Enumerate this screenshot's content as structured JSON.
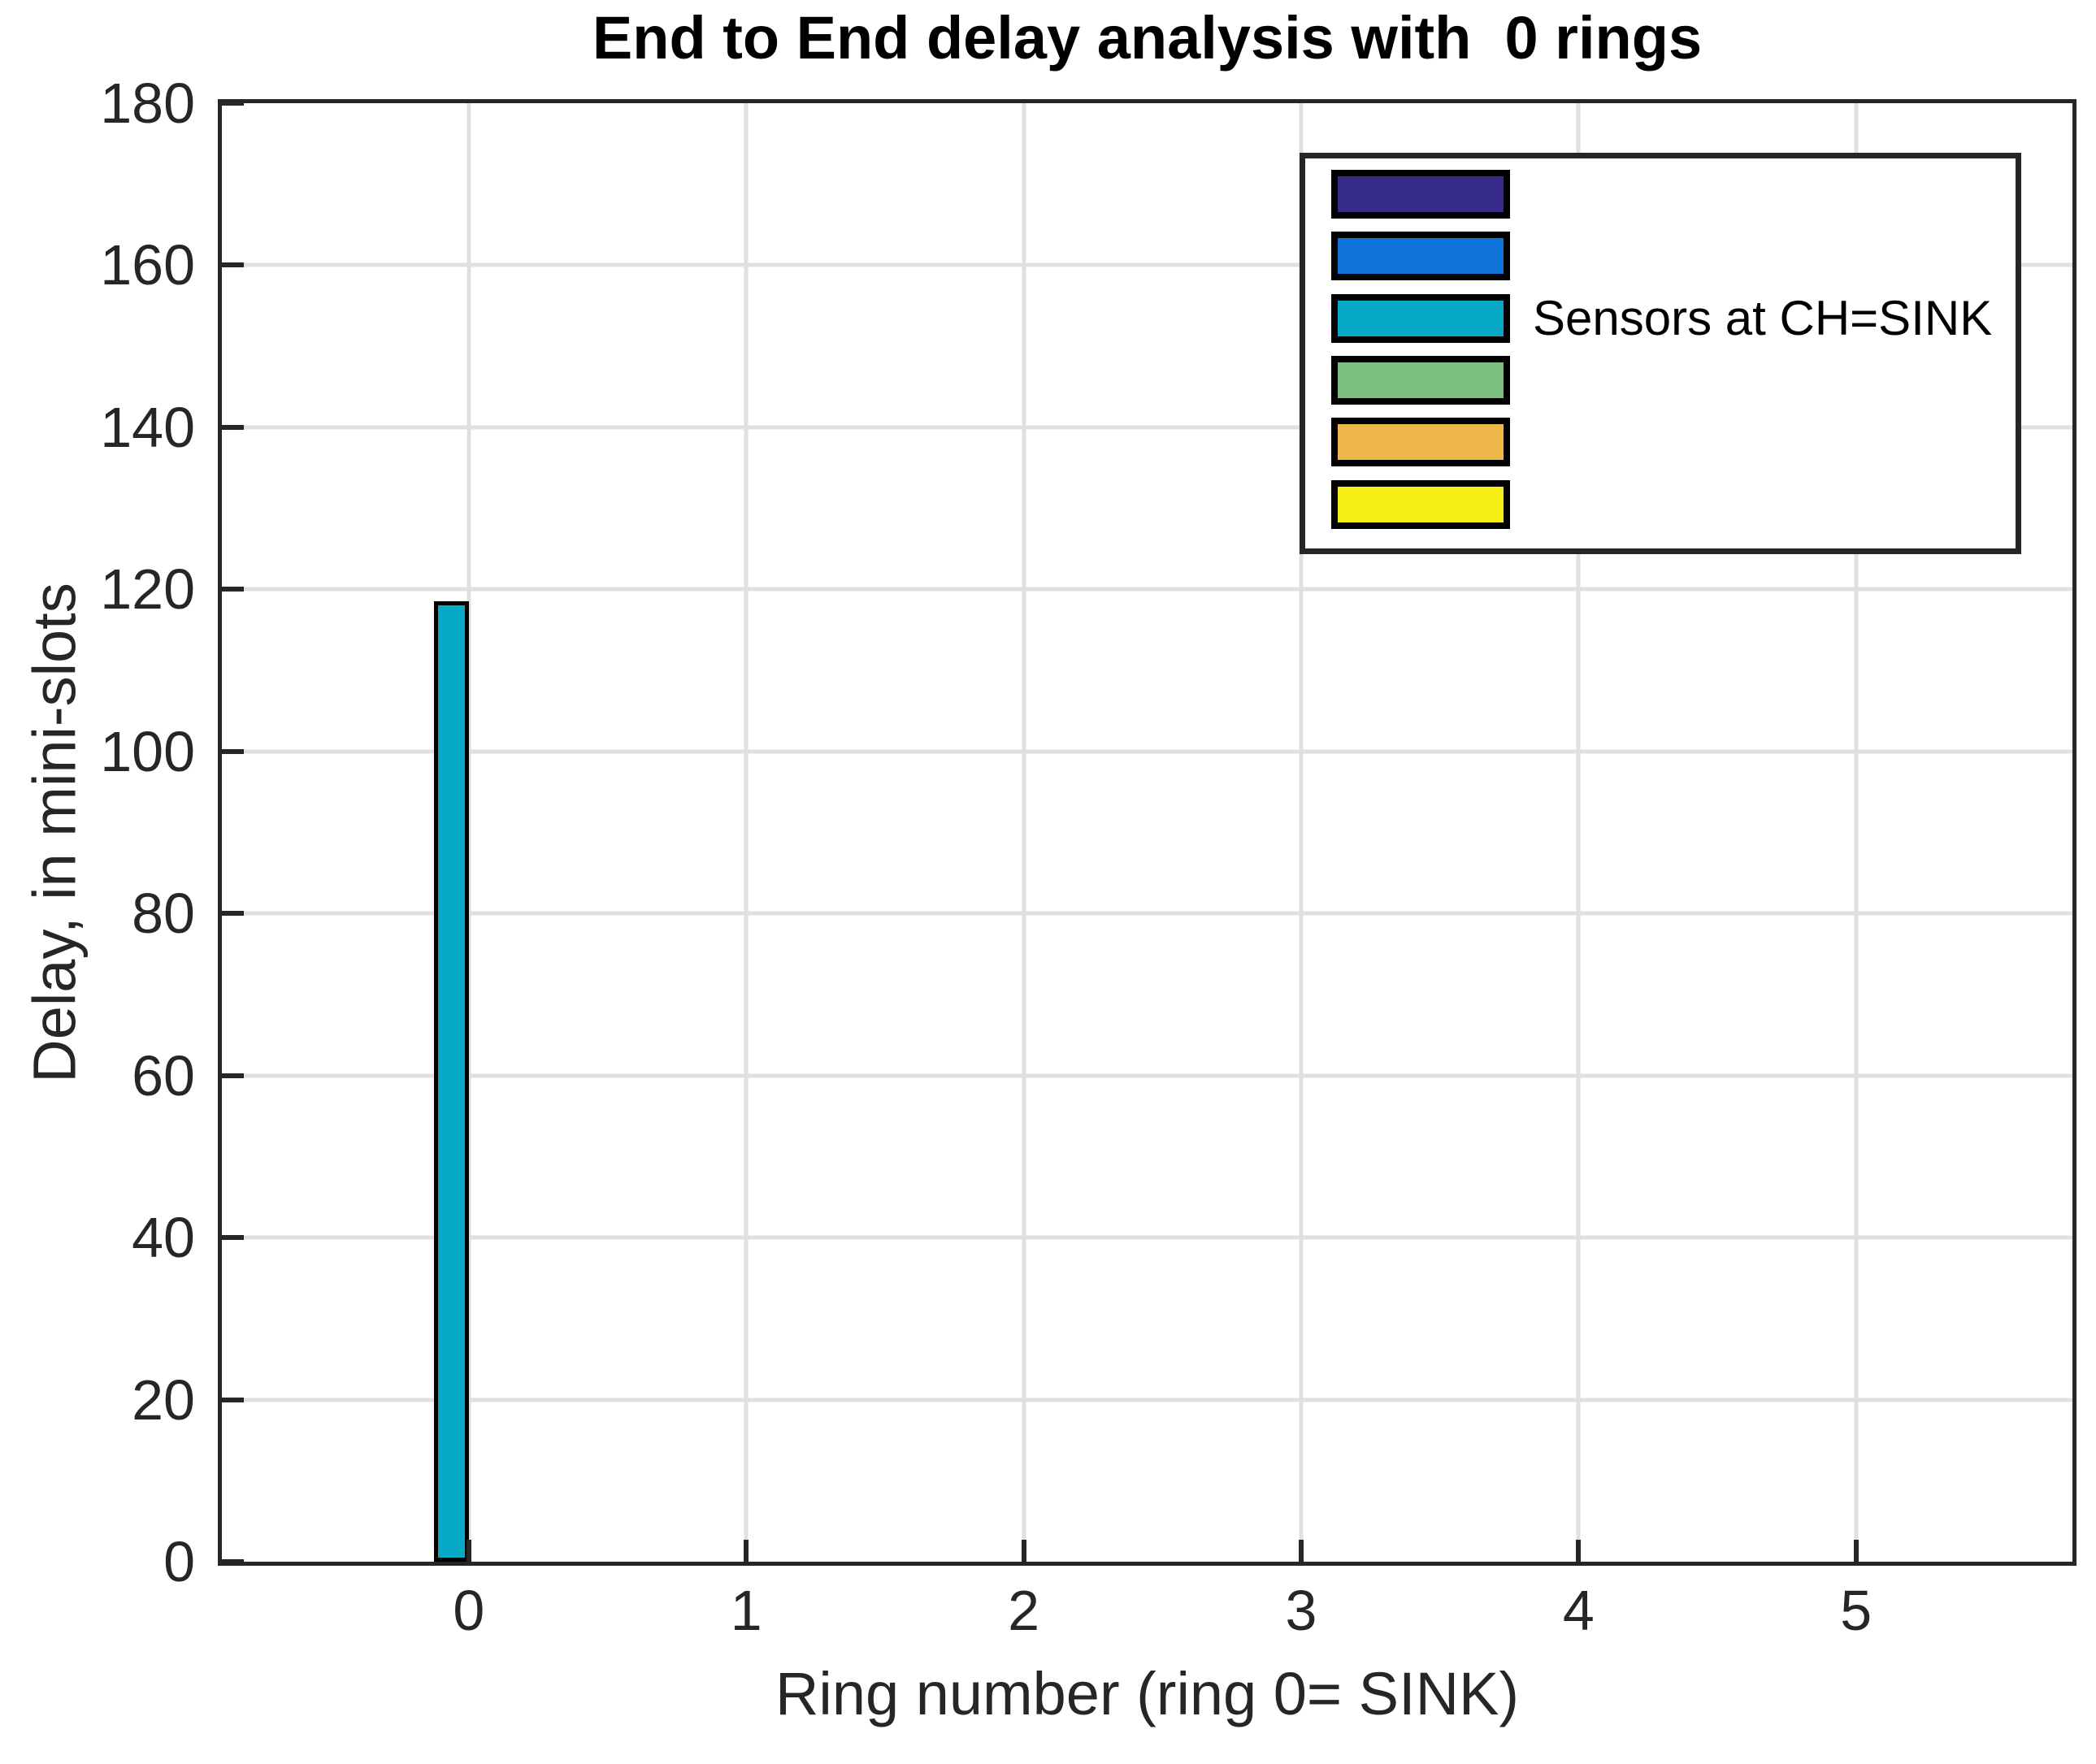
{
  "figure": {
    "background_color": "#ffffff",
    "axis_color": "#262626",
    "grid_color": "#e0e0e0"
  },
  "chart_data": {
    "type": "bar",
    "title": "End to End delay analysis with  0 rings",
    "xlabel": "Ring number (ring 0= SINK)",
    "ylabel": "Delay, in mini-slots",
    "xlim": [
      -0.89,
      5.78
    ],
    "ylim": [
      0,
      180
    ],
    "xticks": [
      0,
      1,
      2,
      3,
      4,
      5
    ],
    "yticks": [
      0,
      20,
      40,
      60,
      80,
      100,
      120,
      140,
      160,
      180
    ],
    "grid": true,
    "bar_group_unit_width": 0.125,
    "categories": [
      0,
      1,
      2,
      3,
      4,
      5
    ],
    "series": [
      {
        "label": "",
        "color": "#352a87",
        "offset": -0.3125,
        "values": []
      },
      {
        "label": "",
        "color": "#0e74dc",
        "offset": -0.1875,
        "values": []
      },
      {
        "label": "Sensors at CH=SINK",
        "color": "#07a9c5",
        "offset": -0.0625,
        "values": [
          {
            "x": 0,
            "y": 118.5
          }
        ]
      },
      {
        "label": "",
        "color": "#7cbe7c",
        "offset": 0.0625,
        "values": []
      },
      {
        "label": "",
        "color": "#eeb84a",
        "offset": 0.1875,
        "values": []
      },
      {
        "label": "",
        "color": "#f6ec16",
        "offset": 0.3125,
        "values": []
      }
    ],
    "legend": {
      "position": "northeast",
      "entries_follow_series_order": true
    }
  }
}
